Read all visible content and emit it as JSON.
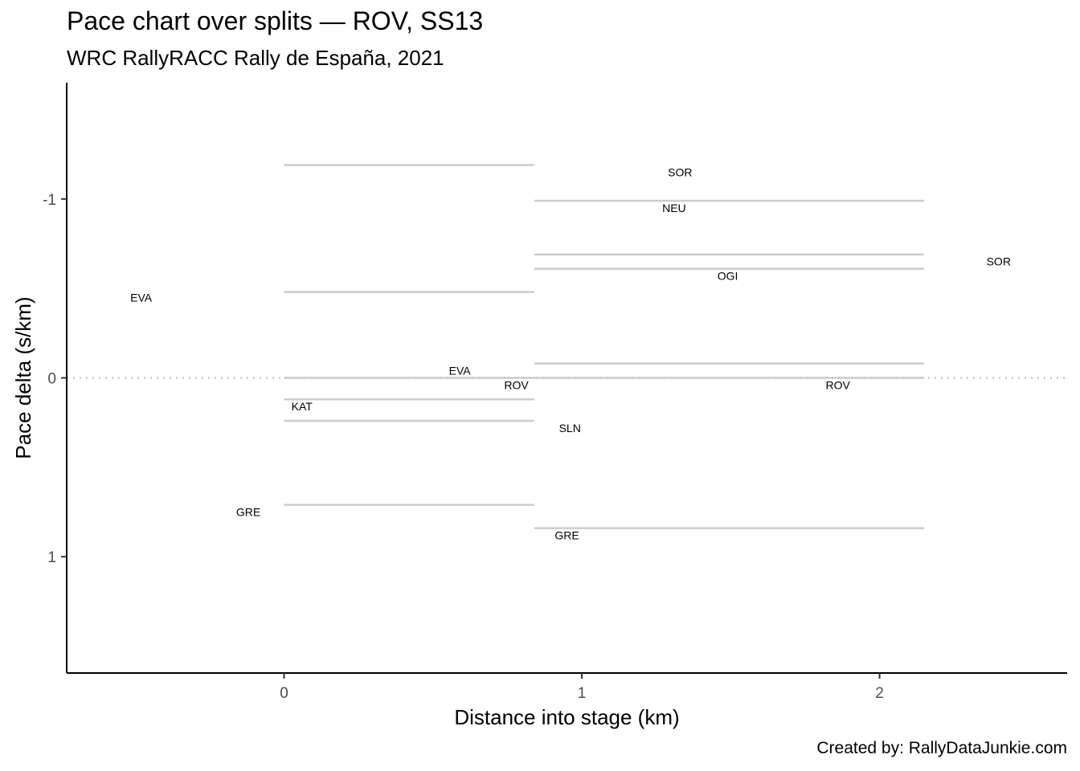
{
  "header": {
    "title": "Pace chart over splits — ROV, SS13",
    "subtitle": "WRC RallyRACC Rally de España, 2021"
  },
  "caption": "Created by: RallyDataJunkie.com",
  "chart_data": {
    "type": "line",
    "xlabel": "Distance into stage (km)",
    "ylabel": "Pace delta (s/km)",
    "xlim": [
      -0.73,
      2.63
    ],
    "ylim": [
      1.65,
      -1.65
    ],
    "y_reversed": true,
    "x_ticks": [
      0,
      1,
      2
    ],
    "y_ticks": [
      -1,
      0,
      1
    ],
    "grid": false,
    "reference_line": {
      "y": 0,
      "style": "dotted"
    },
    "split_segments": [
      {
        "x_start": 0.0,
        "x_end": 0.84,
        "paces": [
          -1.19,
          -0.48,
          0,
          0.12,
          0.24,
          0.71
        ]
      },
      {
        "x_start": 0.84,
        "x_end": 2.15,
        "paces": [
          -0.99,
          -0.69,
          -0.61,
          -0.08,
          0,
          0.84
        ]
      }
    ],
    "labels": [
      {
        "text": "EVA",
        "x": -0.48,
        "y": -0.45
      },
      {
        "text": "GRE",
        "x": -0.12,
        "y": 0.75
      },
      {
        "text": "KAT",
        "x": 0.06,
        "y": 0.16
      },
      {
        "text": "EVA",
        "x": 0.59,
        "y": -0.04
      },
      {
        "text": "ROV",
        "x": 0.78,
        "y": 0.04
      },
      {
        "text": "SOR",
        "x": 1.33,
        "y": -1.15
      },
      {
        "text": "NEU",
        "x": 1.31,
        "y": -0.95
      },
      {
        "text": "OGI",
        "x": 1.49,
        "y": -0.57
      },
      {
        "text": "SLN",
        "x": 0.96,
        "y": 0.28
      },
      {
        "text": "GRE",
        "x": 0.95,
        "y": 0.88
      },
      {
        "text": "ROV",
        "x": 1.86,
        "y": 0.04
      },
      {
        "text": "SOR",
        "x": 2.4,
        "y": -0.65
      }
    ],
    "colors": {
      "segment": "#cccccc",
      "reference": "#c8c8c8",
      "axis": "#000000"
    }
  }
}
